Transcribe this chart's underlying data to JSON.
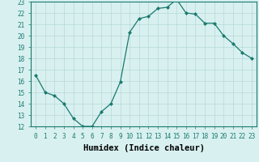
{
  "x": [
    0,
    1,
    2,
    3,
    4,
    5,
    6,
    7,
    8,
    9,
    10,
    11,
    12,
    13,
    14,
    15,
    16,
    17,
    18,
    19,
    20,
    21,
    22,
    23
  ],
  "y": [
    16.5,
    15.0,
    14.7,
    14.0,
    12.7,
    12.0,
    12.0,
    13.3,
    14.0,
    15.9,
    20.3,
    21.5,
    21.7,
    22.4,
    22.5,
    23.2,
    22.0,
    21.9,
    21.1,
    21.1,
    20.0,
    19.3,
    18.5,
    18.0
  ],
  "line_color": "#1a7a6e",
  "marker": "D",
  "marker_size": 2.0,
  "bg_color": "#d8f0f0",
  "grid_color": "#b8d8d8",
  "xlabel": "Humidex (Indice chaleur)",
  "xlim": [
    -0.5,
    23.5
  ],
  "ylim": [
    12,
    23
  ],
  "xticks": [
    0,
    1,
    2,
    3,
    4,
    5,
    6,
    7,
    8,
    9,
    10,
    11,
    12,
    13,
    14,
    15,
    16,
    17,
    18,
    19,
    20,
    21,
    22,
    23
  ],
  "yticks": [
    12,
    13,
    14,
    15,
    16,
    17,
    18,
    19,
    20,
    21,
    22,
    23
  ],
  "xlabel_fontsize": 7.5,
  "tick_fontsize": 5.5
}
